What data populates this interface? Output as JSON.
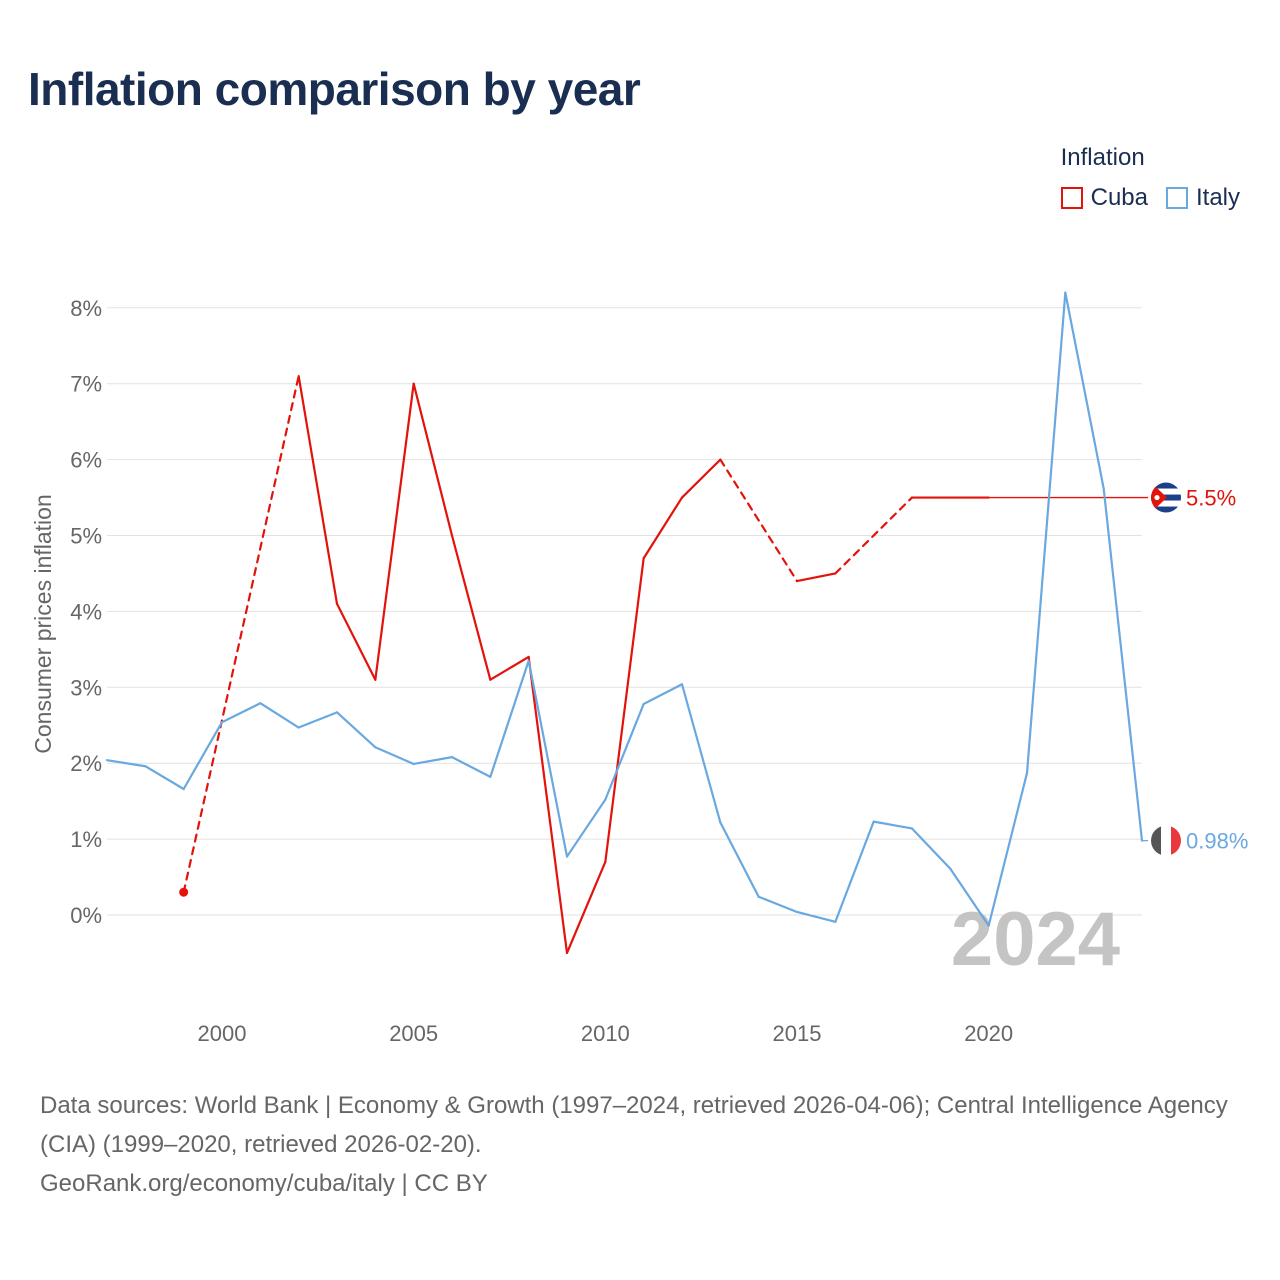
{
  "title": "Inflation comparison by year",
  "legend": {
    "title": "Inflation",
    "items": [
      {
        "name": "Cuba",
        "color": "#e3120b"
      },
      {
        "name": "Italy",
        "color": "#6aa8e0"
      }
    ]
  },
  "chart_data": {
    "type": "line",
    "title": "Inflation comparison by year",
    "xlabel": "",
    "ylabel": "Consumer prices inflation",
    "xlim": [
      1997,
      2024
    ],
    "ylim": [
      -1,
      8.2
    ],
    "x_ticks": [
      2000,
      2005,
      2010,
      2015,
      2020
    ],
    "y_ticks": [
      0,
      1,
      2,
      3,
      4,
      5,
      6,
      7,
      8
    ],
    "y_tick_labels": [
      "0%",
      "1%",
      "2%",
      "3%",
      "4%",
      "5%",
      "6%",
      "7%",
      "8%"
    ],
    "year_watermark": "2024",
    "series": [
      {
        "name": "Cuba",
        "color": "#e3120b",
        "points": [
          {
            "x": 1999,
            "y": 0.3
          },
          {
            "x": 2002,
            "y": 7.1
          },
          {
            "x": 2003,
            "y": 4.1
          },
          {
            "x": 2004,
            "y": 3.1
          },
          {
            "x": 2005,
            "y": 7.0
          },
          {
            "x": 2006,
            "y": 5.0
          },
          {
            "x": 2007,
            "y": 3.1
          },
          {
            "x": 2008,
            "y": 3.4
          },
          {
            "x": 2009,
            "y": -0.5
          },
          {
            "x": 2010,
            "y": 0.7
          },
          {
            "x": 2011,
            "y": 4.7
          },
          {
            "x": 2012,
            "y": 5.5
          },
          {
            "x": 2013,
            "y": 6.0
          },
          {
            "x": 2015,
            "y": 4.4
          },
          {
            "x": 2016,
            "y": 4.5
          },
          {
            "x": 2018,
            "y": 5.5
          },
          {
            "x": 2019,
            "y": 5.5
          },
          {
            "x": 2020,
            "y": 5.5
          }
        ],
        "last_value": 5.5,
        "end_label": "5.5%"
      },
      {
        "name": "Italy",
        "color": "#6aa8e0",
        "points": [
          {
            "x": 1997,
            "y": 2.04
          },
          {
            "x": 1998,
            "y": 1.96
          },
          {
            "x": 1999,
            "y": 1.66
          },
          {
            "x": 2000,
            "y": 2.54
          },
          {
            "x": 2001,
            "y": 2.79
          },
          {
            "x": 2002,
            "y": 2.47
          },
          {
            "x": 2003,
            "y": 2.67
          },
          {
            "x": 2004,
            "y": 2.21
          },
          {
            "x": 2005,
            "y": 1.99
          },
          {
            "x": 2006,
            "y": 2.08
          },
          {
            "x": 2007,
            "y": 1.82
          },
          {
            "x": 2008,
            "y": 3.35
          },
          {
            "x": 2009,
            "y": 0.77
          },
          {
            "x": 2010,
            "y": 1.52
          },
          {
            "x": 2011,
            "y": 2.78
          },
          {
            "x": 2012,
            "y": 3.04
          },
          {
            "x": 2013,
            "y": 1.22
          },
          {
            "x": 2014,
            "y": 0.24
          },
          {
            "x": 2015,
            "y": 0.04
          },
          {
            "x": 2016,
            "y": -0.09
          },
          {
            "x": 2017,
            "y": 1.23
          },
          {
            "x": 2018,
            "y": 1.14
          },
          {
            "x": 2019,
            "y": 0.61
          },
          {
            "x": 2020,
            "y": -0.14
          },
          {
            "x": 2021,
            "y": 1.87
          },
          {
            "x": 2022,
            "y": 8.2
          },
          {
            "x": 2023,
            "y": 5.62
          },
          {
            "x": 2024,
            "y": 0.98
          }
        ],
        "last_value": 0.98,
        "end_label": "0.98%"
      }
    ]
  },
  "footer": {
    "sources": "Data sources: World Bank | Economy & Growth (1997–2024, retrieved 2026-04-06); Central Intelligence Agency (CIA) (1999–2020, retrieved 2026-02-20).",
    "credit": "GeoRank.org/economy/cuba/italy | CC BY"
  }
}
